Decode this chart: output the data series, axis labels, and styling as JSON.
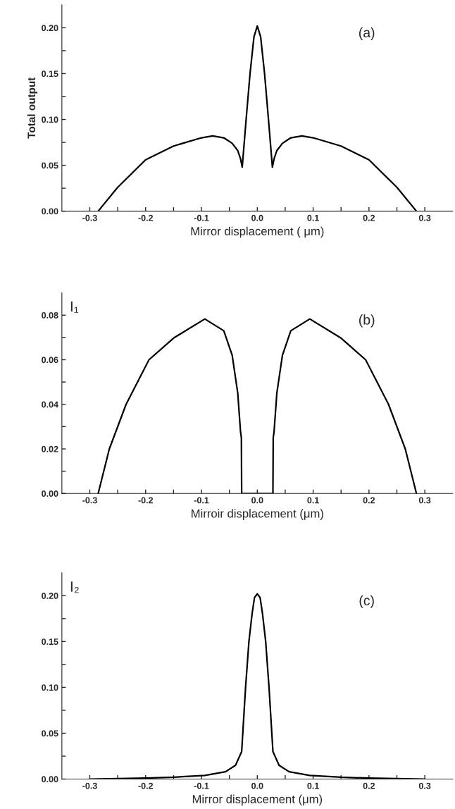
{
  "chart_data": [
    {
      "type": "line",
      "ylabel": "Total output",
      "xlabel": "Mirror displacement ( μm)",
      "annotations": [
        "(a)"
      ],
      "x": [
        -0.285,
        -0.25,
        -0.2,
        -0.15,
        -0.1,
        -0.08,
        -0.06,
        -0.045,
        -0.035,
        -0.03,
        -0.027,
        -0.02,
        -0.013,
        -0.006,
        0,
        0.006,
        0.013,
        0.02,
        0.027,
        0.03,
        0.035,
        0.045,
        0.06,
        0.08,
        0.1,
        0.15,
        0.2,
        0.25,
        0.285
      ],
      "series": [
        {
          "color": "#000000",
          "values": [
            0,
            0.026,
            0.056,
            0.071,
            0.08,
            0.082,
            0.08,
            0.074,
            0.066,
            0.057,
            0.048,
            0.1,
            0.15,
            0.19,
            0.202,
            0.19,
            0.15,
            0.1,
            0.048,
            0.057,
            0.066,
            0.074,
            0.08,
            0.082,
            0.08,
            0.071,
            0.056,
            0.026,
            0
          ]
        }
      ],
      "xlim": [
        -0.35,
        0.35
      ],
      "ylim": [
        0,
        0.225
      ],
      "xticks": [
        -0.3,
        {
          "value": -0.25,
          "label": null
        },
        -0.2,
        {
          "value": -0.15,
          "label": null
        },
        -0.1,
        {
          "value": -0.05,
          "label": null
        },
        {
          "value": 0,
          "label": "0.0"
        },
        {
          "value": 0.05,
          "label": null
        },
        0.1,
        {
          "value": 0.15,
          "label": null
        },
        0.2,
        {
          "value": 0.25,
          "label": null
        },
        0.3
      ],
      "yticks": [
        {
          "value": 0,
          "label": "0.00"
        },
        {
          "value": 0.025,
          "label": null
        },
        0.05,
        {
          "value": 0.075,
          "label": null
        },
        {
          "value": 0.1,
          "label": "0.10"
        },
        {
          "value": 0.125,
          "label": null
        },
        0.15,
        {
          "value": 0.175,
          "label": null
        },
        {
          "value": 0.2,
          "label": "0.20"
        }
      ],
      "grid": false,
      "legend": false
    },
    {
      "type": "line",
      "ylabel": "I₁",
      "xlabel": "Mirroir displacement (μm)",
      "annotations": [
        "(b)"
      ],
      "x": [
        -0.285,
        -0.265,
        -0.235,
        -0.194,
        -0.15,
        -0.094,
        -0.06,
        -0.045,
        -0.035,
        -0.03,
        -0.0285,
        -0.028,
        0.028,
        0.0285,
        0.03,
        0.035,
        0.045,
        0.06,
        0.094,
        0.15,
        0.194,
        0.235,
        0.265,
        0.285
      ],
      "series": [
        {
          "color": "#000000",
          "values": [
            0,
            0.02,
            0.04,
            0.06,
            0.0697,
            0.0783,
            0.073,
            0.062,
            0.045,
            0.0276,
            0.025,
            0,
            0,
            0.025,
            0.0276,
            0.045,
            0.062,
            0.073,
            0.0783,
            0.0697,
            0.06,
            0.04,
            0.02,
            0
          ]
        }
      ],
      "xlim": [
        -0.35,
        0.35
      ],
      "ylim": [
        0,
        0.09
      ],
      "xticks": [
        -0.3,
        {
          "value": -0.25,
          "label": null
        },
        -0.2,
        {
          "value": -0.15,
          "label": null
        },
        -0.1,
        {
          "value": -0.05,
          "label": null
        },
        {
          "value": 0,
          "label": "0.0"
        },
        {
          "value": 0.05,
          "label": null
        },
        0.1,
        {
          "value": 0.15,
          "label": null
        },
        0.2,
        {
          "value": 0.25,
          "label": null
        },
        0.3
      ],
      "yticks": [
        {
          "value": 0,
          "label": "0.00"
        },
        {
          "value": 0.01,
          "label": null
        },
        0.02,
        {
          "value": 0.03,
          "label": null
        },
        0.04,
        {
          "value": 0.05,
          "label": null
        },
        0.06,
        {
          "value": 0.07,
          "label": null
        },
        0.08
      ],
      "grid": false,
      "legend": false
    },
    {
      "type": "line",
      "ylabel": "I₂",
      "xlabel": "Mirror displacement (μm)",
      "annotations": [
        "(c)"
      ],
      "x": [
        -0.3,
        -0.2,
        -0.15,
        -0.094,
        -0.057,
        -0.039,
        -0.028,
        -0.026,
        -0.021,
        -0.015,
        -0.0094,
        -0.005,
        0,
        0.005,
        0.0094,
        0.015,
        0.021,
        0.026,
        0.028,
        0.039,
        0.057,
        0.094,
        0.15,
        0.2,
        0.3
      ],
      "series": [
        {
          "color": "#000000",
          "values": [
            0,
            0.001,
            0.002,
            0.004,
            0.008,
            0.015,
            0.03,
            0.05,
            0.1,
            0.15,
            0.18,
            0.198,
            0.202,
            0.198,
            0.18,
            0.15,
            0.1,
            0.05,
            0.03,
            0.015,
            0.008,
            0.004,
            0.002,
            0.001,
            0
          ]
        }
      ],
      "xlim": [
        -0.35,
        0.35
      ],
      "ylim": [
        0,
        0.225
      ],
      "xticks": [
        -0.3,
        {
          "value": -0.25,
          "label": null
        },
        -0.2,
        {
          "value": -0.15,
          "label": null
        },
        -0.1,
        {
          "value": -0.05,
          "label": null
        },
        {
          "value": 0,
          "label": "0.0"
        },
        {
          "value": 0.05,
          "label": null
        },
        0.1,
        {
          "value": 0.15,
          "label": null
        },
        0.2,
        {
          "value": 0.25,
          "label": null
        },
        0.3
      ],
      "yticks": [
        {
          "value": 0,
          "label": "0.00"
        },
        {
          "value": 0.025,
          "label": null
        },
        0.05,
        {
          "value": 0.075,
          "label": null
        },
        {
          "value": 0.1,
          "label": "0.10"
        },
        {
          "value": 0.125,
          "label": null
        },
        0.15,
        {
          "value": 0.175,
          "label": null
        },
        {
          "value": 0.2,
          "label": "0.20"
        }
      ],
      "grid": false,
      "legend": false
    }
  ]
}
